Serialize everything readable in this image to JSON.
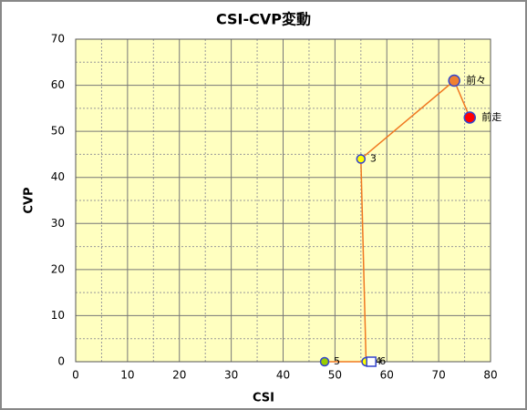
{
  "chart_data": {
    "type": "scatter",
    "title": "CSI-CVP変動",
    "x_label": "CSI",
    "y_label": "CVP",
    "xlim": [
      0,
      80
    ],
    "xticks": [
      0,
      10,
      20,
      30,
      40,
      50,
      60,
      70,
      80
    ],
    "ylim": [
      0,
      70
    ],
    "yticks": [
      0,
      10,
      20,
      30,
      40,
      50,
      60,
      70
    ],
    "grid": true,
    "series": [
      {
        "color": "#f07820",
        "x": [
          76,
          73,
          55,
          56,
          48,
          57
        ],
        "values": [
          53,
          61,
          44,
          0,
          0,
          0
        ],
        "point_labels": [
          "前走",
          "前々",
          "3",
          "4",
          "5",
          "6"
        ],
        "point_colors": [
          "#ff0000",
          "#f08030",
          "#ffff00",
          "#ffff00",
          "#99cc00",
          "#ffffff"
        ],
        "markers": [
          "circle",
          "circle",
          "circle",
          "circle",
          "circle",
          "square"
        ]
      }
    ]
  }
}
